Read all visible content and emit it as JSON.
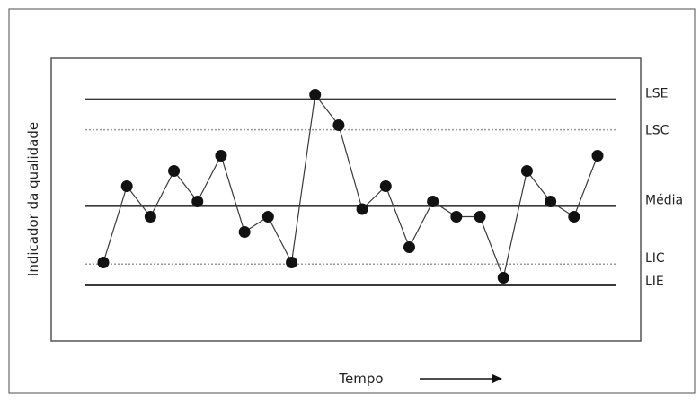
{
  "chart_data": {
    "type": "line",
    "title": "",
    "xlabel": "Tempo",
    "ylabel": "Indicador da qualidade",
    "x_arrow_icon": "right-arrow-icon",
    "values": [
      1.5,
      6.5,
      4.5,
      7.5,
      5.5,
      8.5,
      3.5,
      4.5,
      1.5,
      12.5,
      10.5,
      5.0,
      6.5,
      2.5,
      5.5,
      4.5,
      4.5,
      0.5,
      7.5,
      5.5,
      4.5,
      8.5
    ],
    "ylim": [
      -1,
      14
    ],
    "control_lines": [
      {
        "label": "LSE",
        "value": 12.2,
        "style": "solid"
      },
      {
        "label": "LSC",
        "value": 10.2,
        "style": "dotted"
      },
      {
        "label": "Média",
        "value": 5.2,
        "style": "solid"
      },
      {
        "label": "LIC",
        "value": 1.4,
        "style": "dotted"
      },
      {
        "label": "LIE",
        "value": 0.0,
        "style": "solid"
      }
    ],
    "grid": false,
    "legend": "none",
    "colors": {
      "line": "#3a3a3a",
      "marker": "#111111",
      "frame": "#555555",
      "dotted": "#9a9a9a"
    }
  }
}
